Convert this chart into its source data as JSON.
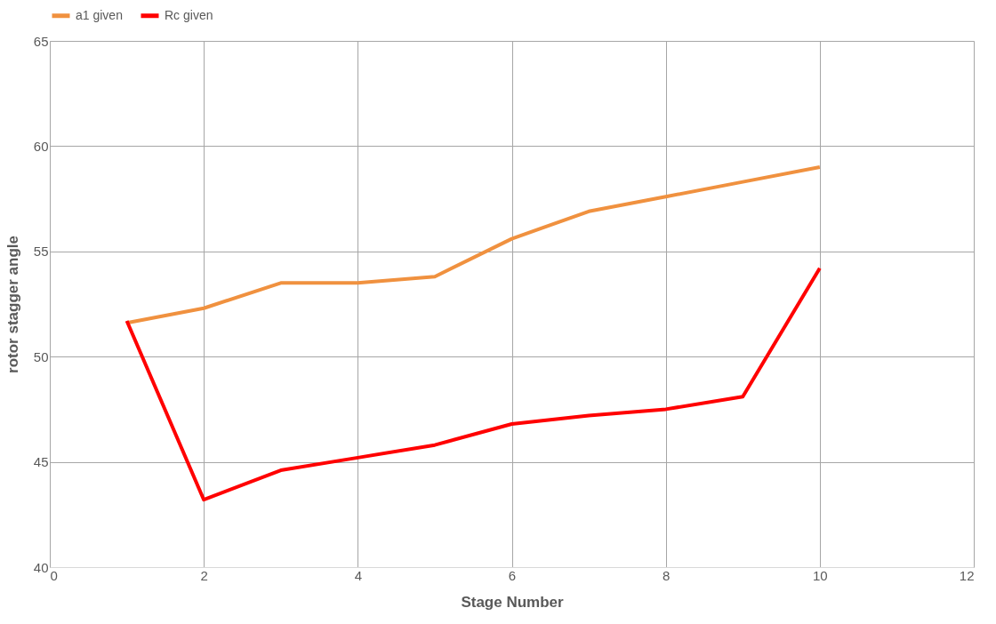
{
  "chart_data": {
    "type": "line",
    "xlabel": "Stage Number",
    "ylabel": "rotor stagger angle",
    "x": [
      1,
      2,
      3,
      4,
      5,
      6,
      7,
      8,
      9,
      10
    ],
    "series": [
      {
        "name": "a1 given",
        "color": "#f0913f",
        "values": [
          51.6,
          52.3,
          53.5,
          53.5,
          53.8,
          55.6,
          56.9,
          57.6,
          58.3,
          59.0
        ]
      },
      {
        "name": "Rc given",
        "color": "#ff0000",
        "values": [
          51.7,
          43.2,
          44.6,
          45.2,
          45.8,
          46.8,
          47.2,
          47.5,
          48.1,
          54.2
        ]
      }
    ],
    "xlim": [
      0,
      12
    ],
    "xticks": [
      0,
      2,
      4,
      6,
      8,
      10,
      12
    ],
    "ylim": [
      40,
      65
    ],
    "yticks": [
      40,
      45,
      50,
      55,
      60,
      65
    ],
    "grid": true,
    "legend": "top",
    "marker": "none",
    "line_style": "solid"
  }
}
